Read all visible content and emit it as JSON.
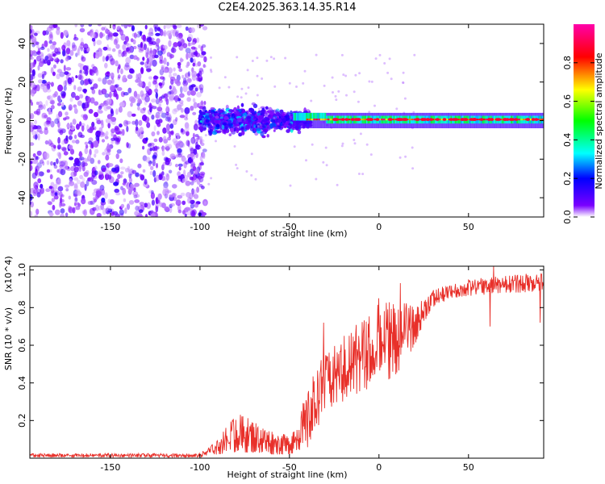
{
  "title": "C2E4.2025.363.14.35.R14",
  "chart_data": [
    {
      "type": "heatmap",
      "title": "C2E4.2025.363.14.35.R14",
      "xlabel": "Height of straight line (km)",
      "ylabel": "Frequency (Hz)",
      "xlim": [
        -195,
        92
      ],
      "ylim": [
        -50,
        50
      ],
      "xticks": [
        -150,
        -100,
        -50,
        0,
        50
      ],
      "yticks": [
        -40,
        -20,
        0,
        20,
        40
      ],
      "colorbar": {
        "label": "Normalized spectral amplitude",
        "range": [
          0,
          1
        ],
        "ticks": [
          0.0,
          0.2,
          0.4,
          0.6,
          0.8
        ],
        "tick_labels": [
          "0.0",
          "0.2",
          "0.4",
          "0.6",
          "0.8"
        ],
        "colors": [
          "#ffffff",
          "#7a00ff",
          "#0000ff",
          "#00ffff",
          "#00ff00",
          "#ffff00",
          "#ff0000",
          "#ff00aa"
        ]
      },
      "regions": [
        {
          "x_range": [
            -195,
            -100
          ],
          "description": "broadband noise",
          "freq_range": [
            -50,
            50
          ],
          "level": 0.15
        },
        {
          "x_range": [
            -100,
            -50
          ],
          "description": "energetic band",
          "freq_range": [
            -10,
            10
          ],
          "level": 0.35
        },
        {
          "x_range": [
            -50,
            92
          ],
          "description": "narrow carrier line",
          "freq_center": 0,
          "level": 0.9
        }
      ]
    },
    {
      "type": "line",
      "xlabel": "Height of straight line (km)",
      "ylabel": "SNR (10 * v/v)",
      "y_multiplier": "(x10^4)",
      "xlim": [
        -195,
        92
      ],
      "ylim": [
        0,
        1.02
      ],
      "xticks": [
        -150,
        -100,
        -50,
        0,
        50
      ],
      "yticks": [
        0.2,
        0.4,
        0.6,
        0.8,
        1.0
      ],
      "ytick_labels": [
        "0.2",
        "0.4",
        "0.6",
        "0.8",
        "1.0"
      ],
      "series": [
        {
          "name": "SNR",
          "color": "#e8302a",
          "envelope_x": [
            -195,
            -100,
            -90,
            -80,
            -70,
            -60,
            -50,
            -40,
            -35,
            -30,
            -20,
            -10,
            0,
            10,
            20,
            25,
            30,
            40,
            50,
            60,
            70,
            80,
            92
          ],
          "envelope_low": [
            0.005,
            0.005,
            0.02,
            0.03,
            0.03,
            0.02,
            0.02,
            0.05,
            0.15,
            0.25,
            0.3,
            0.35,
            0.38,
            0.45,
            0.6,
            0.72,
            0.8,
            0.85,
            0.86,
            0.87,
            0.88,
            0.88,
            0.89
          ],
          "envelope_high": [
            0.025,
            0.025,
            0.1,
            0.25,
            0.2,
            0.15,
            0.12,
            0.35,
            0.5,
            0.55,
            0.65,
            0.75,
            0.85,
            0.85,
            0.8,
            0.85,
            0.9,
            0.92,
            0.95,
            0.96,
            0.97,
            0.98,
            1.0
          ],
          "spikes": [
            {
              "x": -31,
              "y": 0.72
            },
            {
              "x": 0,
              "y": 0.85
            },
            {
              "x": 12,
              "y": 0.93
            },
            {
              "x": 64,
              "y": 1.02
            },
            {
              "x": 62,
              "y": 0.7
            },
            {
              "x": 90,
              "y": 0.72
            }
          ]
        }
      ]
    }
  ]
}
